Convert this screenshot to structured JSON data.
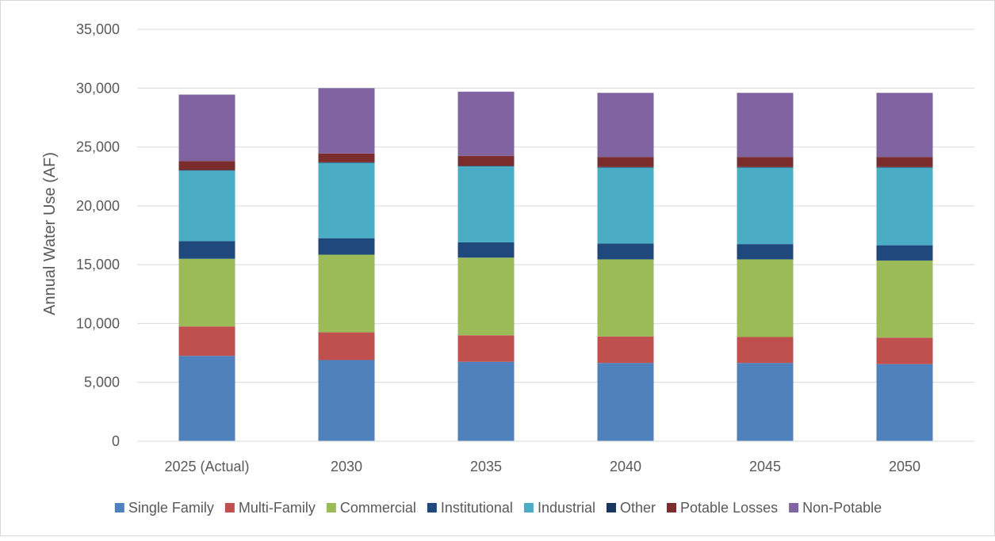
{
  "chart_data": {
    "type": "bar",
    "stacked": true,
    "title": "",
    "xlabel": "",
    "ylabel": "Annual Water Use (AF)",
    "ylim": [
      0,
      35000
    ],
    "yticks": [
      0,
      5000,
      10000,
      15000,
      20000,
      25000,
      30000,
      35000
    ],
    "ytick_labels": [
      "0",
      "5,000",
      "10,000",
      "15,000",
      "20,000",
      "25,000",
      "30,000",
      "35,000"
    ],
    "grid": true,
    "legend_position": "bottom",
    "categories": [
      "2025 (Actual)",
      "2030",
      "2035",
      "2040",
      "2045",
      "2050"
    ],
    "series": [
      {
        "name": "Single Family",
        "color": "#4f81bd",
        "values": [
          7250,
          6900,
          6750,
          6650,
          6650,
          6550
        ]
      },
      {
        "name": "Multi-Family",
        "color": "#c0504d",
        "values": [
          2500,
          2350,
          2250,
          2250,
          2200,
          2250
        ]
      },
      {
        "name": "Commercial",
        "color": "#9bbb59",
        "values": [
          5750,
          6600,
          6600,
          6550,
          6600,
          6550
        ]
      },
      {
        "name": "Institutional",
        "color": "#1f497d",
        "values": [
          1500,
          1400,
          1300,
          1350,
          1300,
          1300
        ]
      },
      {
        "name": "Industrial",
        "color": "#4bacc6",
        "values": [
          6000,
          6400,
          6450,
          6450,
          6500,
          6600
        ]
      },
      {
        "name": "Other",
        "color": "#17375e",
        "values": [
          50,
          50,
          50,
          50,
          50,
          50
        ]
      },
      {
        "name": "Potable Losses",
        "color": "#7b2c2c",
        "values": [
          750,
          750,
          850,
          850,
          850,
          850
        ]
      },
      {
        "name": "Non-Potable",
        "color": "#8064a2",
        "values": [
          5650,
          5550,
          5450,
          5450,
          5450,
          5450
        ]
      }
    ]
  }
}
